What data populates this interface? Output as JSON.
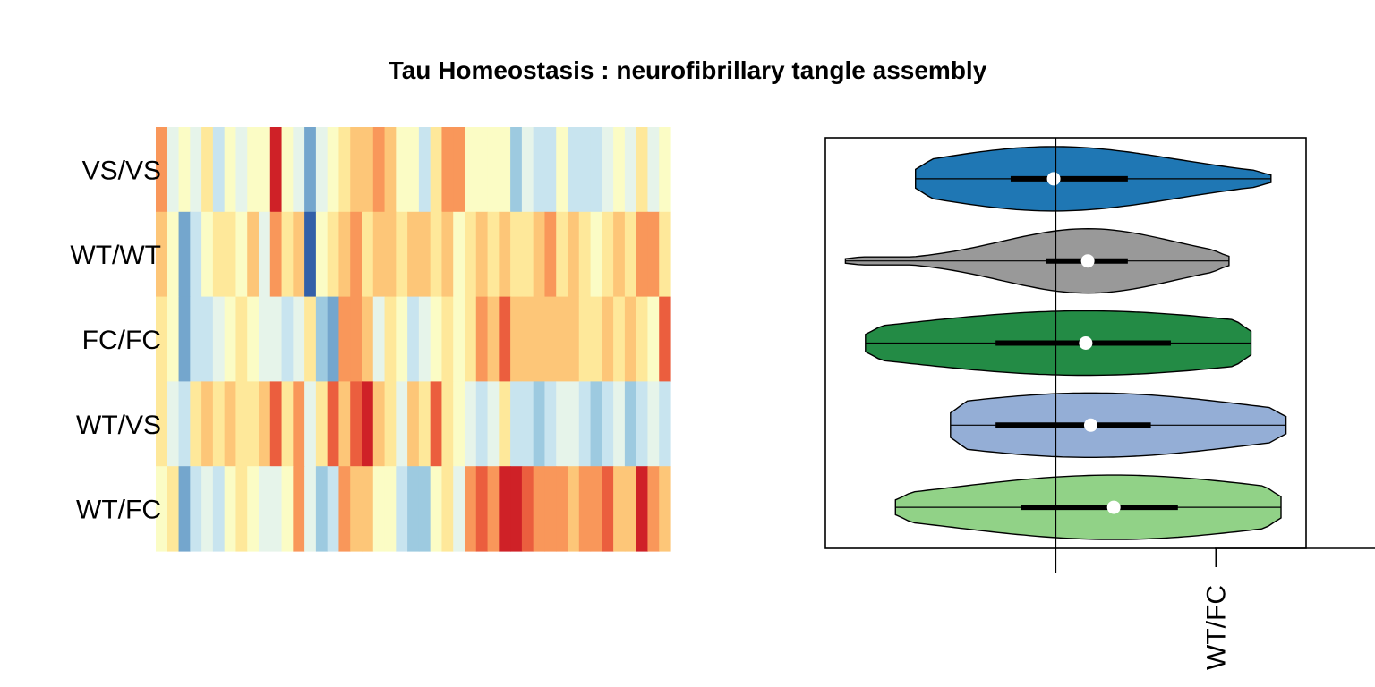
{
  "title": "Tau Homeostasis : neurofibrillary tangle assembly",
  "chart_data": [
    {
      "type": "heatmap",
      "name": "genotype-heatmap",
      "rows": [
        "VS/VS",
        "WT/WT",
        "FC/FC",
        "WT/VS",
        "WT/FC"
      ],
      "n_columns": 45,
      "palette": [
        "#3360A8",
        "#74A6CD",
        "#9DCAE0",
        "#C8E4EF",
        "#E6F4EA",
        "#FBFCC5",
        "#FEE89A",
        "#FDC678",
        "#F9975A",
        "#EB5E3E",
        "#CF2127"
      ],
      "levels": [
        [
          8,
          4,
          5,
          4,
          6,
          3,
          5,
          4,
          5,
          5,
          10,
          5,
          4,
          1,
          4,
          5,
          6,
          7,
          7,
          8,
          7,
          5,
          5,
          3,
          6,
          8,
          8,
          5,
          5,
          5,
          5,
          2,
          4,
          3,
          3,
          5,
          3,
          3,
          3,
          4,
          5,
          4,
          6,
          4,
          5
        ],
        [
          7,
          5,
          1,
          3,
          5,
          6,
          6,
          5,
          7,
          4,
          8,
          6,
          7,
          0,
          5,
          6,
          7,
          8,
          6,
          7,
          7,
          6,
          7,
          7,
          6,
          7,
          5,
          6,
          7,
          6,
          7,
          6,
          6,
          7,
          8,
          6,
          7,
          6,
          5,
          6,
          7,
          6,
          8,
          8,
          6
        ],
        [
          6,
          5,
          1,
          3,
          3,
          4,
          5,
          6,
          5,
          4,
          4,
          3,
          4,
          6,
          2,
          1,
          8,
          8,
          7,
          4,
          6,
          5,
          3,
          4,
          5,
          6,
          5,
          6,
          8,
          7,
          9,
          7,
          7,
          7,
          7,
          7,
          7,
          6,
          6,
          7,
          6,
          7,
          6,
          5,
          9
        ],
        [
          6,
          4,
          3,
          6,
          7,
          6,
          7,
          6,
          6,
          7,
          9,
          6,
          8,
          4,
          6,
          9,
          7,
          9,
          10,
          7,
          6,
          4,
          7,
          6,
          9,
          6,
          5,
          4,
          3,
          4,
          6,
          3,
          3,
          2,
          3,
          4,
          4,
          3,
          2,
          3,
          4,
          2,
          3,
          4,
          3
        ],
        [
          5,
          6,
          1,
          3,
          4,
          3,
          5,
          6,
          5,
          4,
          4,
          5,
          8,
          4,
          2,
          3,
          8,
          7,
          7,
          5,
          5,
          3,
          2,
          2,
          5,
          6,
          4,
          8,
          9,
          8,
          10,
          10,
          9,
          8,
          8,
          8,
          7,
          8,
          8,
          9,
          7,
          7,
          10,
          8,
          7
        ]
      ]
    },
    {
      "type": "violin",
      "name": "genotype-violins",
      "groups": [
        {
          "name": "VS/VS",
          "color": "#1F77B4",
          "min": -1.4,
          "q1": -0.45,
          "median": -0.02,
          "q3": 0.72,
          "max": 2.15
        },
        {
          "name": "WT/WT",
          "color": "#999999",
          "min": -2.1,
          "q1": -0.1,
          "median": 0.32,
          "q3": 0.72,
          "max": 1.73
        },
        {
          "name": "FC/FC",
          "color": "#238B45",
          "min": -1.9,
          "q1": -0.6,
          "median": 0.3,
          "q3": 1.15,
          "max": 1.95
        },
        {
          "name": "WT/VS",
          "color": "#94AED6",
          "min": -1.05,
          "q1": -0.6,
          "median": 0.35,
          "q3": 0.95,
          "max": 2.3
        },
        {
          "name": "WT/FC",
          "color": "#91D287",
          "min": -1.6,
          "q1": -0.35,
          "median": 0.58,
          "q3": 1.22,
          "max": 2.25
        }
      ],
      "reference_line": 0,
      "xlim": [
        -2.3,
        2.5
      ],
      "axis_tick_label": "WT/FC",
      "axis_tick_value": 1.6
    }
  ]
}
